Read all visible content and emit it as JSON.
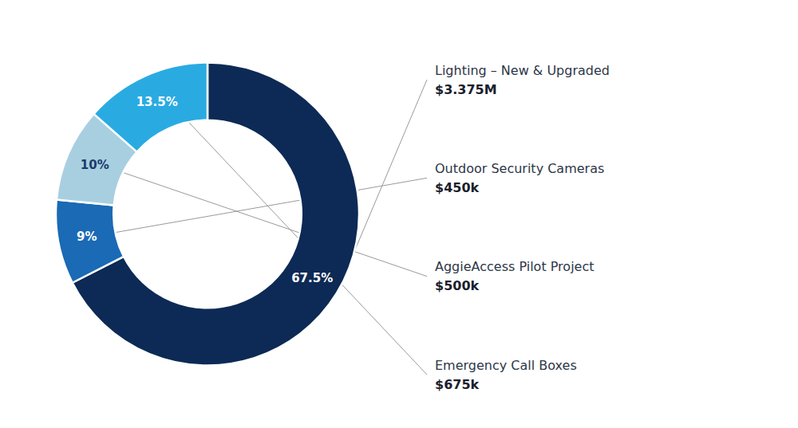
{
  "chart_data": {
    "type": "donut",
    "categories": [
      "Lighting – New & Upgraded",
      "Outdoor Security Cameras",
      "AggieAccess Pilot Project",
      "Emergency Call Boxes"
    ],
    "values": [
      67.5,
      9.0,
      10.0,
      13.5
    ],
    "value_labels": [
      "67.5%",
      "9%",
      "10%",
      "13.5%"
    ],
    "data_labels": true,
    "amounts": [
      3375000,
      450000,
      500000,
      675000
    ],
    "amount_labels": [
      "$3.375M",
      "$450k",
      "$500k",
      "$675k"
    ],
    "colors": [
      "#0c2a55",
      "#1a6ab5",
      "#a8cfe0",
      "#29abe2"
    ]
  }
}
